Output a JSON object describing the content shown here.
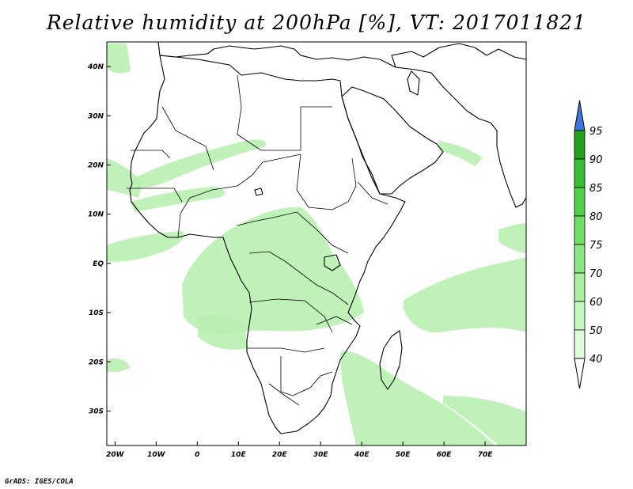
{
  "title": "Relative humidity at 200hPa [%], VT: 2017011821",
  "footer": "GrADS: IGES/COLA",
  "map": {
    "projection": "latlon",
    "lon_range": [
      -22,
      80
    ],
    "lat_range": [
      -37,
      45
    ],
    "lon_ticks": [
      {
        "value": -20,
        "label": "20W"
      },
      {
        "value": -10,
        "label": "10W"
      },
      {
        "value": 0,
        "label": "0"
      },
      {
        "value": 10,
        "label": "10E"
      },
      {
        "value": 20,
        "label": "20E"
      },
      {
        "value": 30,
        "label": "30E"
      },
      {
        "value": 40,
        "label": "40E"
      },
      {
        "value": 50,
        "label": "50E"
      },
      {
        "value": 60,
        "label": "60E"
      },
      {
        "value": 70,
        "label": "70E"
      }
    ],
    "lat_ticks": [
      {
        "value": 40,
        "label": "40N"
      },
      {
        "value": 30,
        "label": "30N"
      },
      {
        "value": 20,
        "label": "20N"
      },
      {
        "value": 10,
        "label": "10N"
      },
      {
        "value": 0,
        "label": "EQ"
      },
      {
        "value": -10,
        "label": "10S"
      },
      {
        "value": -20,
        "label": "20S"
      },
      {
        "value": -30,
        "label": "30S"
      }
    ],
    "humidity_color": "#b8f0b0"
  },
  "colorbar": {
    "levels": [
      "40",
      "50",
      "60",
      "70",
      "75",
      "80",
      "85",
      "90",
      "95"
    ],
    "colors": [
      "#f0fff0",
      "#dcfcdc",
      "#c4f8c0",
      "#a8f0a0",
      "#8ce684",
      "#6ede66",
      "#50d04a",
      "#38be34",
      "#22a01e"
    ],
    "over_color": "#3c78dc",
    "under_color": "#ffffff"
  }
}
